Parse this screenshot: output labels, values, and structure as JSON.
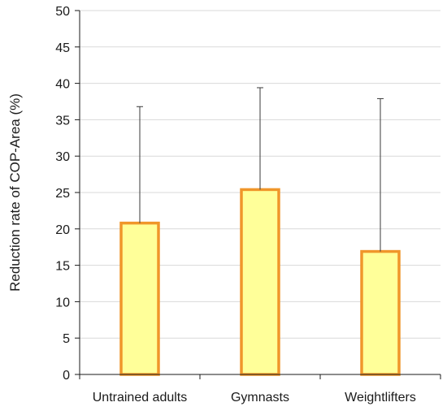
{
  "chart_data": {
    "type": "bar",
    "title": "",
    "xlabel": "",
    "ylabel": "Reduction rate of COP-Area (%)",
    "ylim": [
      0,
      50
    ],
    "yticks": [
      0,
      5,
      10,
      15,
      20,
      25,
      30,
      35,
      40,
      45,
      50
    ],
    "grid": true,
    "categories": [
      "Untrained adults",
      "Gymnasts",
      "Weightlifters"
    ],
    "values": [
      20.8,
      25.4,
      16.9
    ],
    "error_upper": [
      36.8,
      39.4,
      37.9
    ],
    "colors": {
      "bar_fill": "#ffff99",
      "bar_edge": "#f0962a",
      "grid": "#d9d9d9",
      "axis": "#1a1a1a",
      "error_bar": "#3a3a3a"
    }
  }
}
